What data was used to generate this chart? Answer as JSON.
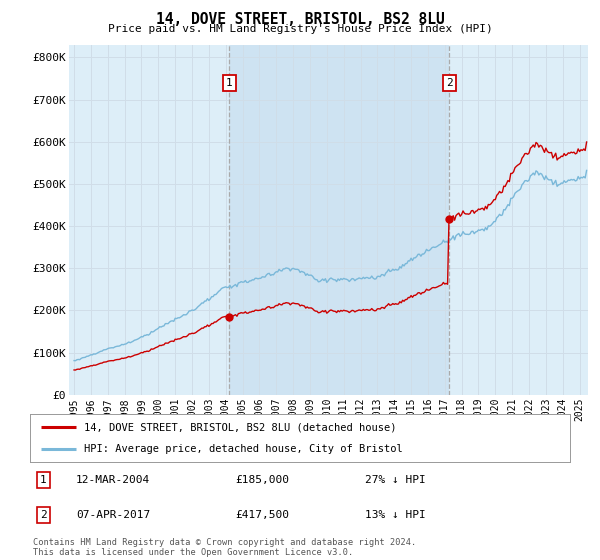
{
  "title": "14, DOVE STREET, BRISTOL, BS2 8LU",
  "subtitle": "Price paid vs. HM Land Registry's House Price Index (HPI)",
  "xlim_start": 1994.7,
  "xlim_end": 2025.5,
  "ylim": [
    0,
    830000
  ],
  "yticks": [
    0,
    100000,
    200000,
    300000,
    400000,
    500000,
    600000,
    700000,
    800000
  ],
  "ytick_labels": [
    "£0",
    "£100K",
    "£200K",
    "£300K",
    "£400K",
    "£500K",
    "£600K",
    "£700K",
    "£800K"
  ],
  "xtick_years": [
    1995,
    1996,
    1997,
    1998,
    1999,
    2000,
    2001,
    2002,
    2003,
    2004,
    2005,
    2006,
    2007,
    2008,
    2009,
    2010,
    2011,
    2012,
    2013,
    2014,
    2015,
    2016,
    2017,
    2018,
    2019,
    2020,
    2021,
    2022,
    2023,
    2024,
    2025
  ],
  "sale1_x": 2004.2,
  "sale1_y": 185000,
  "sale1_label": "1",
  "sale1_date": "12-MAR-2004",
  "sale1_price": "£185,000",
  "sale1_hpi": "27% ↓ HPI",
  "sale2_x": 2017.27,
  "sale2_y": 417500,
  "sale2_label": "2",
  "sale2_date": "07-APR-2017",
  "sale2_price": "£417,500",
  "sale2_hpi": "13% ↓ HPI",
  "hpi_color": "#7ab8d9",
  "sale_color": "#cc0000",
  "vline_color": "#aaaaaa",
  "grid_color": "#d0dde8",
  "bg_color": "#ddeef8",
  "plot_bg": "#ddeef8",
  "shade_color": "#cce0ef",
  "footnote": "Contains HM Land Registry data © Crown copyright and database right 2024.\nThis data is licensed under the Open Government Licence v3.0.",
  "legend1_text": "14, DOVE STREET, BRISTOL, BS2 8LU (detached house)",
  "legend2_text": "HPI: Average price, detached house, City of Bristol"
}
